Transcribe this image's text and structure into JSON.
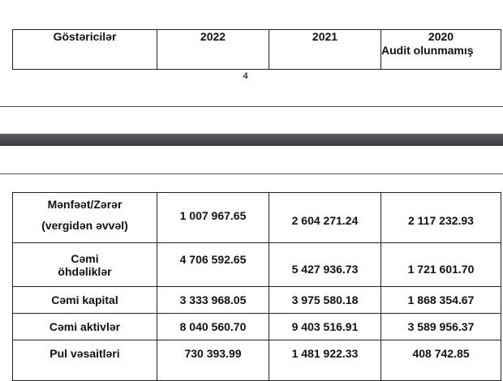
{
  "header_table": {
    "columns": [
      "Göstəricilər",
      "2022",
      "2021",
      "2020"
    ],
    "note_2020": "Audit olunmamış"
  },
  "page_number": "4",
  "data_table": {
    "rows": [
      {
        "label_line1": "Mənfəət/Zərər",
        "label_line2": "(vergidən əvvəl)",
        "v2022": "1 007 967.65",
        "v2021": "2 604 271.24",
        "v2020": "2 117 232.93"
      },
      {
        "label_line1": "Cəmi",
        "label_line2": "öhdəliklər",
        "v2022": "4 706 592.65",
        "v2021": "5 427 936.73",
        "v2020": "1 721 601.70"
      },
      {
        "label_line1": "Cəmi kapital",
        "v2022": "3 333 968.05",
        "v2021": "3 975 580.18",
        "v2020": "1 868 354.67"
      },
      {
        "label_line1": "Cəmi aktivlər",
        "v2022": "8 040 560.70",
        "v2021": "9 403 516.91",
        "v2020": "3 589 956.37"
      },
      {
        "label_line1": "Pul vəsaitləri",
        "v2022": "730 393.99",
        "v2021": "1 481 922.33",
        "v2020": "408 742.85"
      }
    ]
  }
}
